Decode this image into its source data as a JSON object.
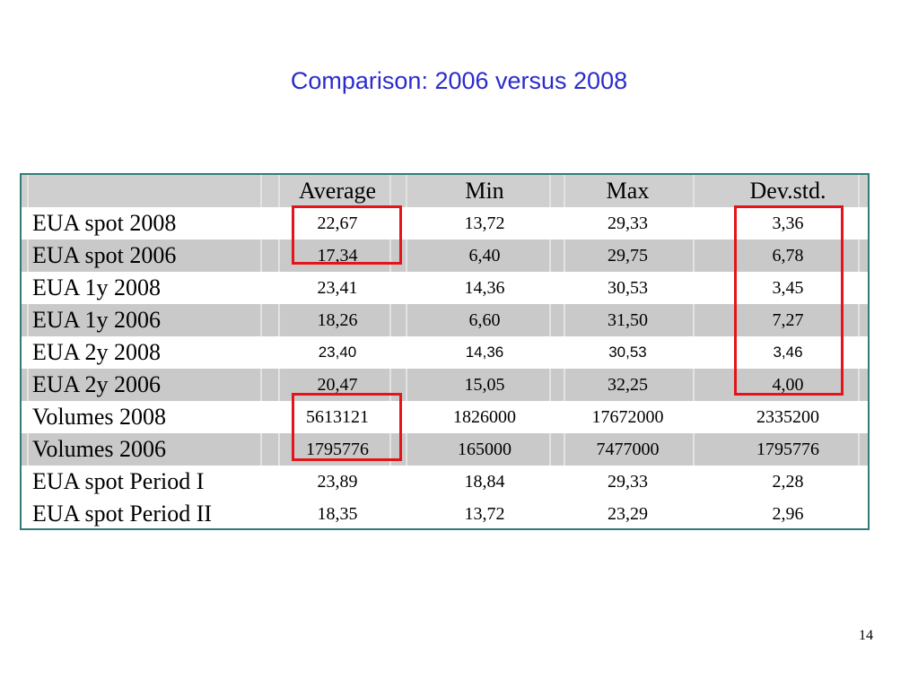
{
  "slide": {
    "title": "Comparison: 2006 versus 2008",
    "page_number": "14"
  },
  "table": {
    "headers": [
      "",
      "Average",
      "Min",
      "Max",
      "Dev.std."
    ],
    "rows": [
      {
        "label": "EUA spot 2008",
        "values": [
          "22,67",
          "13,72",
          "29,33",
          "3,36"
        ]
      },
      {
        "label": "EUA spot 2006",
        "values": [
          "17,34",
          "6,40",
          "29,75",
          "6,78"
        ]
      },
      {
        "label": "EUA 1y 2008",
        "values": [
          "23,41",
          "14,36",
          "30,53",
          "3,45"
        ]
      },
      {
        "label": "EUA 1y 2006",
        "values": [
          "18,26",
          "6,60",
          "31,50",
          "7,27"
        ]
      },
      {
        "label": "EUA 2y 2008",
        "values": [
          "23,40",
          "14,36",
          "30,53",
          "3,46"
        ]
      },
      {
        "label": "EUA 2y 2006",
        "values": [
          "20,47",
          "15,05",
          "32,25",
          "4,00"
        ]
      },
      {
        "label": "Volumes 2008",
        "values": [
          "5613121",
          "1826000",
          "17672000",
          "2335200"
        ]
      },
      {
        "label": "Volumes 2006",
        "values": [
          "1795776",
          "165000",
          "7477000",
          "1795776"
        ]
      },
      {
        "label": "EUA spot Period I",
        "values": [
          "23,89",
          "18,84",
          "29,33",
          "2,28"
        ]
      },
      {
        "label": "EUA spot Period II",
        "values": [
          "18,35",
          "13,72",
          "23,29",
          "2,96"
        ]
      }
    ]
  },
  "colors": {
    "title": "#2b2bcc",
    "highlight": "#e3151a",
    "table_border": "#2f7d78",
    "shaded_row": "#c9c9c9"
  }
}
